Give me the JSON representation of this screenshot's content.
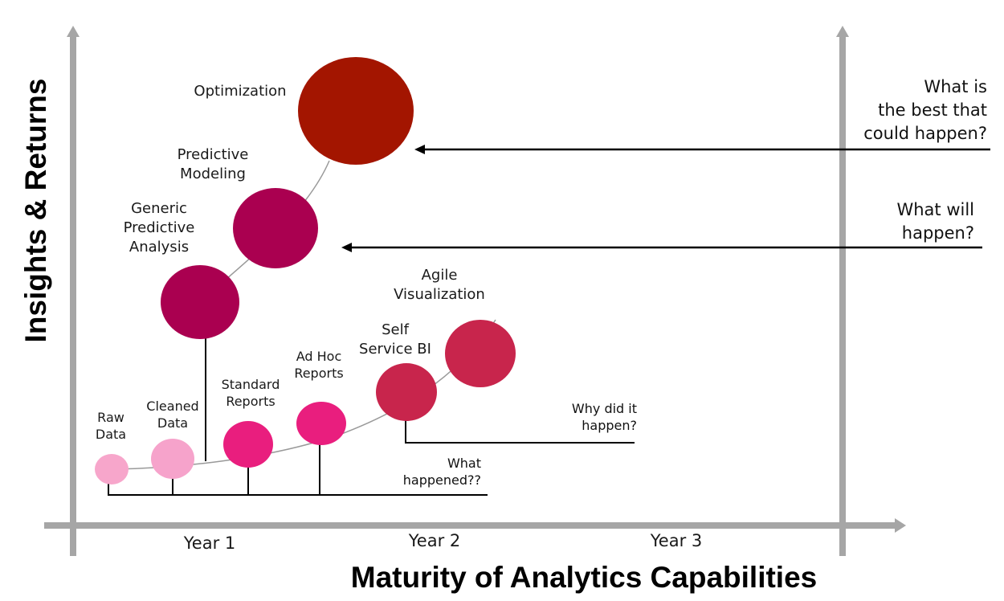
{
  "title": "",
  "axes": {
    "y_title": "Insights & Returns",
    "x_title": "Maturity of Analytics Capabilities",
    "x_ticks": [
      "Year 1",
      "Year 2",
      "Year 3"
    ]
  },
  "stages": [
    {
      "label_lines": [
        "Raw",
        "Data"
      ],
      "color": "#f7a6cb"
    },
    {
      "label_lines": [
        "Cleaned",
        "Data"
      ],
      "color": "#f6a3cb"
    },
    {
      "label_lines": [
        "Standard",
        "Reports"
      ],
      "color": "#e91e7e"
    },
    {
      "label_lines": [
        "Ad Hoc",
        "Reports"
      ],
      "color": "#e91e7e"
    },
    {
      "label_lines": [
        "Self",
        "Service BI"
      ],
      "color": "#c8254c"
    },
    {
      "label_lines": [
        "Agile",
        "Visualization"
      ],
      "color": "#c8254c"
    },
    {
      "label_lines": [
        "Generic",
        "Predictive",
        "Analysis"
      ],
      "color": "#aa0050"
    },
    {
      "label_lines": [
        "Predictive",
        "Modeling"
      ],
      "color": "#aa0050"
    },
    {
      "label_lines": [
        "Optimization"
      ],
      "color": "#a31500"
    }
  ],
  "questions": [
    {
      "lines": [
        "What",
        "happened??"
      ]
    },
    {
      "lines": [
        "Why did it",
        "happen?"
      ]
    },
    {
      "lines": [
        "What will",
        "happen?"
      ]
    },
    {
      "lines": [
        "What is",
        "the best that",
        "could happen?"
      ]
    }
  ],
  "colors": {
    "axis": "#a6a6a6",
    "curve": "#999999",
    "connector": "#000000"
  }
}
